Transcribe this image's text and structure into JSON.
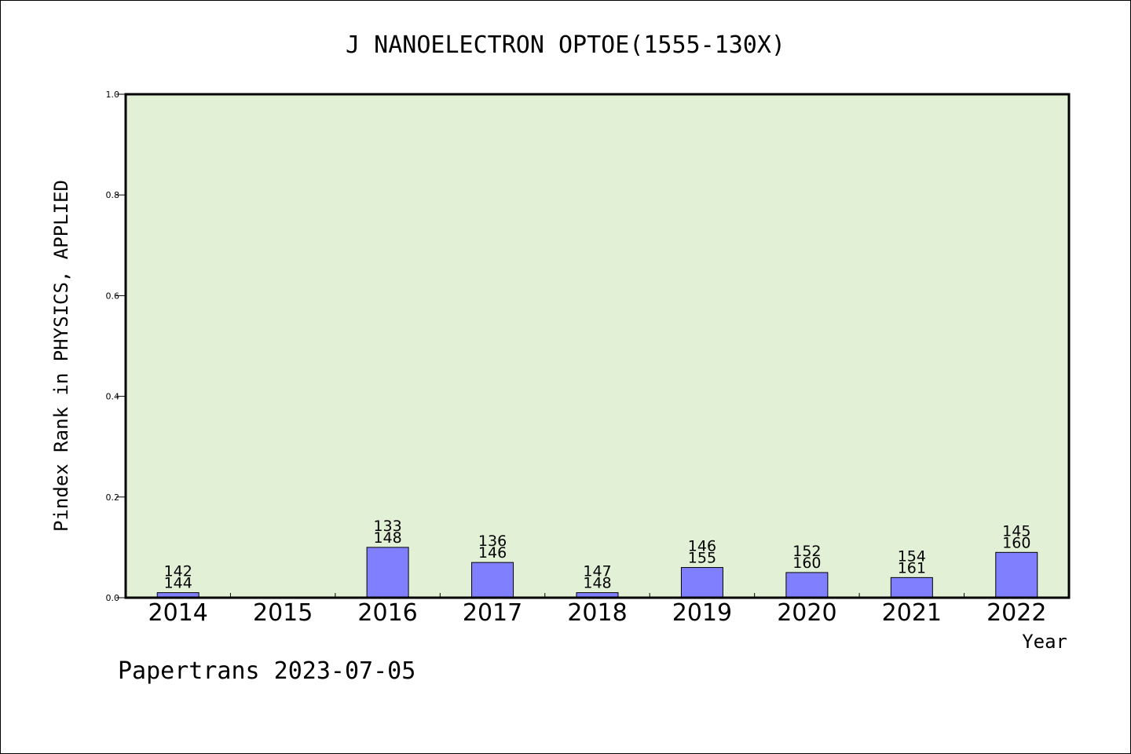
{
  "chart_data": {
    "type": "bar",
    "title": "J NANOELECTRON OPTOE(1555-130X)",
    "ylabel": "Pindex Rank in PHYSICS, APPLIED",
    "xlabel": "Year",
    "ylim": [
      0,
      1.0
    ],
    "yticks": [
      "0.0",
      "0.2",
      "0.4",
      "0.6",
      "0.8",
      "1.0"
    ],
    "categories": [
      "2014",
      "2015",
      "2016",
      "2017",
      "2018",
      "2019",
      "2020",
      "2021",
      "2022"
    ],
    "values": [
      0.01,
      0,
      0.1,
      0.07,
      0.01,
      0.06,
      0.05,
      0.04,
      0.09
    ],
    "labels_top": [
      "142",
      "",
      "133",
      "136",
      "147",
      "146",
      "152",
      "154",
      "145"
    ],
    "labels_bottom": [
      "144",
      "",
      "148",
      "146",
      "148",
      "155",
      "160",
      "161",
      "160"
    ],
    "plot_bg_color": "#e2f0d6",
    "bar_color": "#8080ff",
    "grid": false
  },
  "footer": "Papertrans 2023-07-05"
}
